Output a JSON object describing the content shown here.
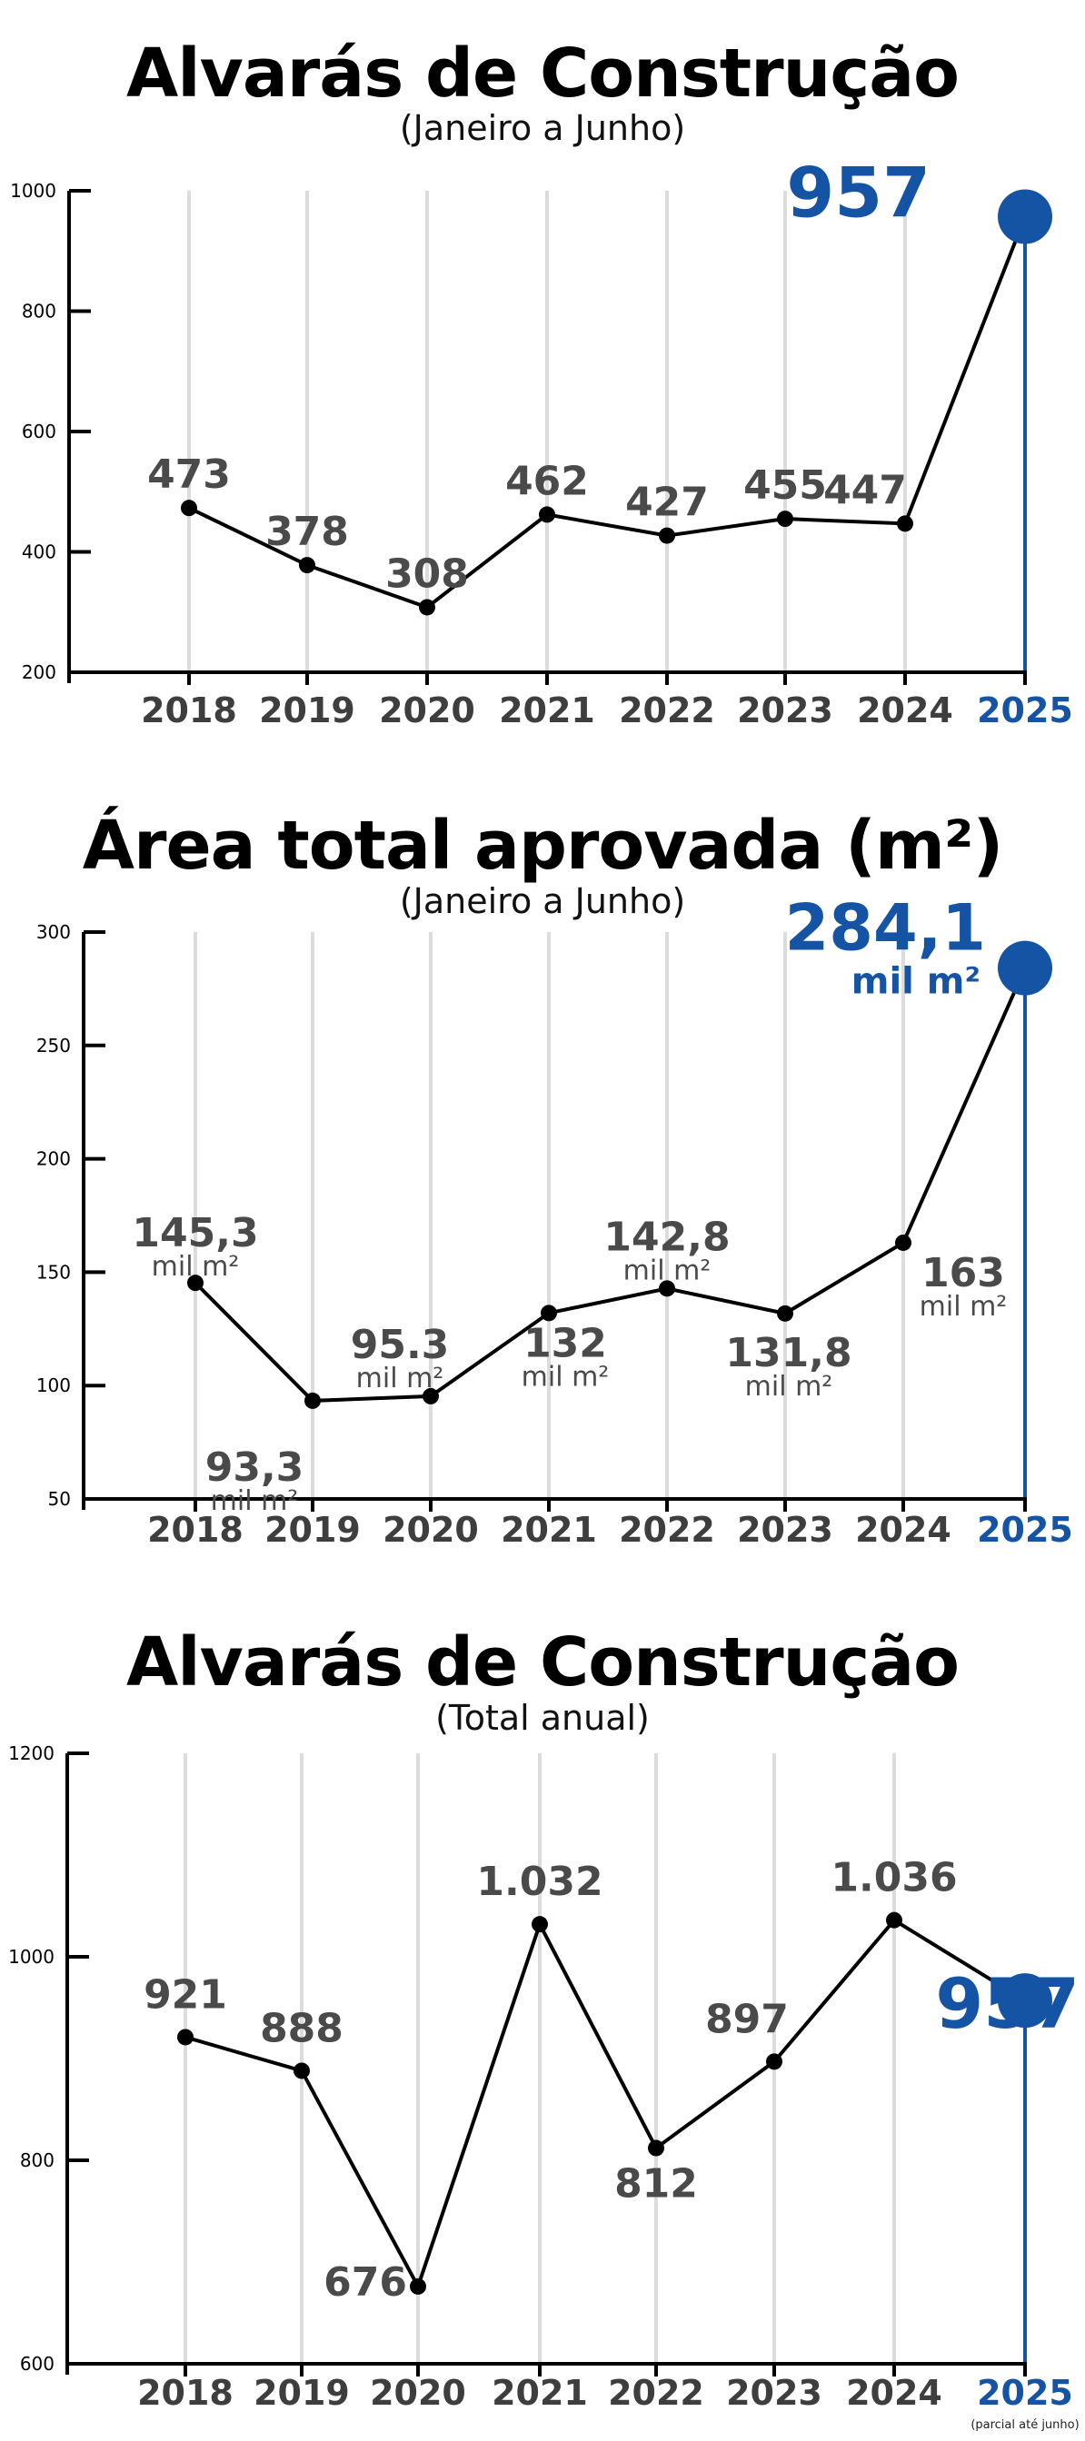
{
  "chart_data": [
    {
      "type": "line",
      "title": "Alvarás de Construção",
      "subtitle": "(Janeiro a Junho)",
      "categories": [
        "2018",
        "2019",
        "2020",
        "2021",
        "2022",
        "2023",
        "2024",
        "2025"
      ],
      "values": [
        473,
        378,
        308,
        462,
        427,
        455,
        447,
        957
      ],
      "value_labels": [
        "473",
        "378",
        "308",
        "462",
        "427",
        "455",
        "447",
        "957"
      ],
      "value_units": [
        "",
        "",
        "",
        "",
        "",
        "",
        "",
        ""
      ],
      "footnote": "",
      "ylim": [
        200,
        1000
      ],
      "yticks": [
        200,
        400,
        600,
        800,
        1000
      ],
      "ytick_labels": [
        "200",
        "400",
        "600",
        "800",
        "1000"
      ],
      "grid": "vertical",
      "highlight_color": "#1554a4"
    },
    {
      "type": "line",
      "title": "Área total aprovada (m²)",
      "subtitle": "(Janeiro a Junho)",
      "categories": [
        "2018",
        "2019",
        "2020",
        "2021",
        "2022",
        "2023",
        "2024",
        "2025"
      ],
      "values": [
        145.3,
        93.3,
        95.3,
        132,
        142.8,
        131.8,
        163,
        284.1
      ],
      "value_labels": [
        "145,3",
        "93,3",
        "95.3",
        "132",
        "142,8",
        "131,8",
        "163",
        "284,1"
      ],
      "value_units": [
        "mil m²",
        "mil m²",
        "mil m²",
        "mil m²",
        "mil m²",
        "mil m²",
        "mil m²",
        "mil m²"
      ],
      "footnote": "",
      "ylim": [
        50,
        300
      ],
      "yticks": [
        50,
        100,
        150,
        200,
        250,
        300
      ],
      "ytick_labels": [
        "50",
        "100",
        "150",
        "200",
        "250",
        "300"
      ],
      "grid": "vertical",
      "highlight_color": "#1554a4"
    },
    {
      "type": "line",
      "title": "Alvarás de Construção",
      "subtitle": "(Total anual)",
      "categories": [
        "2018",
        "2019",
        "2020",
        "2021",
        "2022",
        "2023",
        "2024",
        "2025"
      ],
      "values": [
        921,
        888,
        676,
        1032,
        812,
        897,
        1036,
        957
      ],
      "value_labels": [
        "921",
        "888",
        "676",
        "1.032",
        "812",
        "897",
        "1.036",
        "957"
      ],
      "value_units": [
        "",
        "",
        "",
        "",
        "",
        "",
        "",
        ""
      ],
      "footnote": "(parcial até junho)",
      "ylim": [
        600,
        1200
      ],
      "yticks": [
        600,
        800,
        1000,
        1200
      ],
      "ytick_labels": [
        "600",
        "800",
        "1000",
        "1200"
      ],
      "grid": "vertical",
      "highlight_color": "#1554a4"
    }
  ]
}
